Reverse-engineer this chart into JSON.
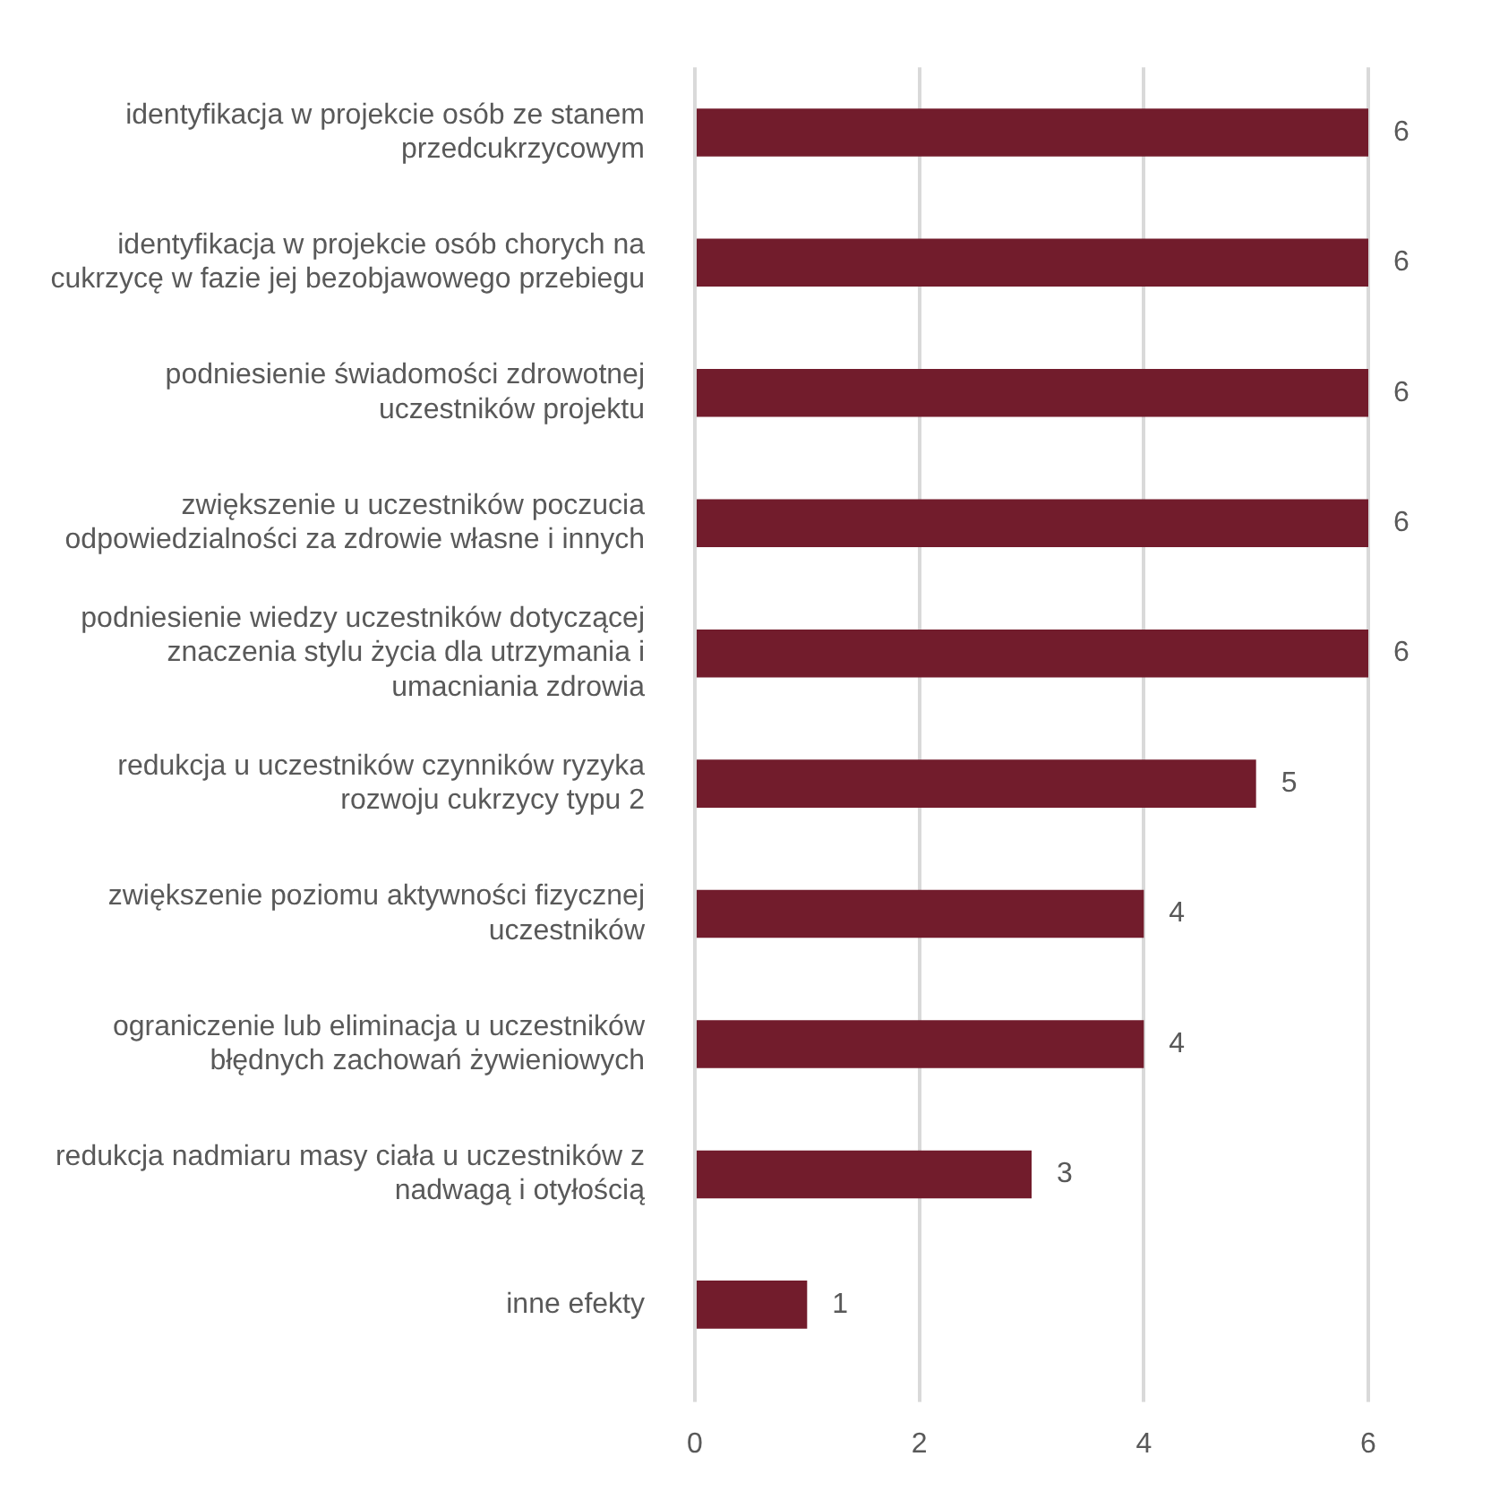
{
  "chart_data": {
    "type": "bar",
    "orientation": "horizontal",
    "categories": [
      "identyfikacja w projekcie osób ze stanem przedcukrzycowym",
      "identyfikacja w projekcie osób chorych na cukrzycę w fazie jej bezobjawowego przebiegu",
      "podniesienie świadomości zdrowotnej uczestników projektu",
      "zwiększenie u uczestników poczucia odpowiedzialności za zdrowie własne i innych",
      "podniesienie wiedzy uczestników dotyczącej znaczenia stylu życia dla utrzymania i umacniania zdrowia",
      "redukcja u uczestników czynników ryzyka rozwoju cukrzycy typu 2",
      "zwiększenie poziomu aktywności fizycznej uczestników",
      "ograniczenie lub eliminacja u uczestników błędnych zachowań żywieniowych",
      "redukcja nadmiaru masy ciała u uczestników z nadwagą i otyłością",
      "inne efekty"
    ],
    "values": [
      6,
      6,
      6,
      6,
      6,
      5,
      4,
      4,
      3,
      1
    ],
    "color": "#721c2c",
    "xlim": [
      0,
      6
    ],
    "xticks": [
      0,
      2,
      4,
      6
    ],
    "grid": "x",
    "data_labels": true
  }
}
